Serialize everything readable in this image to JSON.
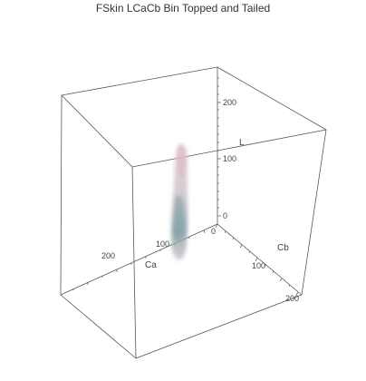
{
  "chart_data": {
    "type": "scatter",
    "subtype": "3d-volume-density",
    "title": "FSkin LCaCb Bin Topped and Tailed",
    "axes": {
      "L": {
        "label": "L",
        "ticks": [
          0,
          100,
          200
        ],
        "range": [
          0,
          255
        ]
      },
      "Cb": {
        "label": "Cb",
        "ticks": [
          0,
          100,
          200
        ],
        "range": [
          0,
          255
        ]
      },
      "Ca": {
        "label": "Ca",
        "ticks": [
          100,
          200
        ],
        "range": [
          0,
          255
        ]
      }
    },
    "box": true,
    "density_cloud": {
      "description_color_top": "#c9a9b0",
      "description_color_bottom": "#7f9aa3",
      "center_ca": 128,
      "center_cb": 128
    },
    "colors": {
      "box_line": "#555555",
      "cloud_pink": "#d8b8bf",
      "cloud_teal": "#7d9ea6"
    }
  }
}
